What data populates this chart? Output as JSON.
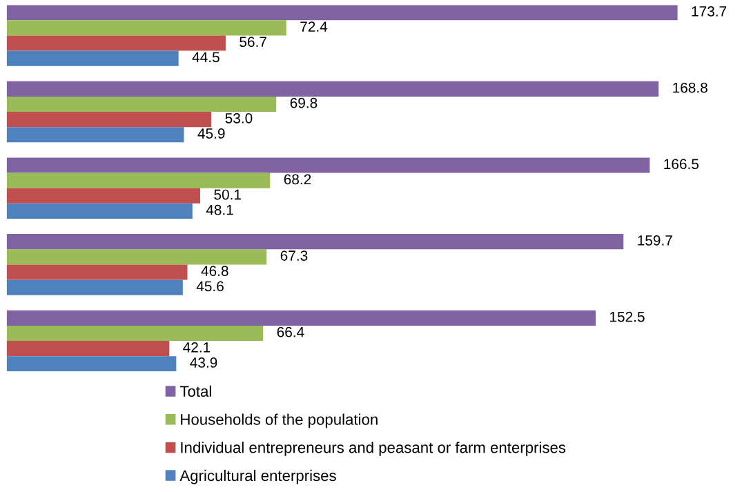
{
  "chart_data": {
    "type": "bar",
    "orientation": "horizontal",
    "categories": [
      null,
      null,
      null,
      null,
      null
    ],
    "series": [
      {
        "name": "Total",
        "color": "#8064a2",
        "values": [
          173.7,
          168.8,
          166.5,
          159.7,
          152.5
        ]
      },
      {
        "name": "Households of the population",
        "color": "#9bbb59",
        "values": [
          72.4,
          69.8,
          68.2,
          67.3,
          66.4
        ]
      },
      {
        "name": "Individual entrepreneurs and peasant or farm enterprises",
        "color": "#c0504d",
        "values": [
          56.7,
          53.0,
          50.1,
          46.8,
          42.1
        ],
        "value_labels": [
          "56.7",
          "53.0",
          "50.1",
          "46.8",
          "42.1"
        ]
      },
      {
        "name": "Agricultural enterprises",
        "color": "#4f81bd",
        "values": [
          44.5,
          45.9,
          48.1,
          45.6,
          43.9
        ]
      }
    ],
    "data_labels": true,
    "legend": "bottom",
    "tick_labels": false
  }
}
